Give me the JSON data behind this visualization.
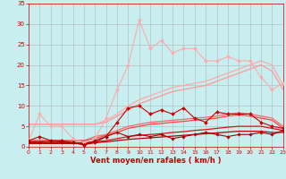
{
  "background_color": "#c8eef0",
  "grid_color": "#b0b0b0",
  "xlabel": "Vent moyen/en rafales ( km/h )",
  "xlabel_color": "#cc0000",
  "tick_color": "#cc0000",
  "xlim": [
    0,
    23
  ],
  "ylim": [
    0,
    35
  ],
  "xticks": [
    0,
    1,
    2,
    3,
    4,
    5,
    6,
    7,
    8,
    9,
    10,
    11,
    12,
    13,
    14,
    15,
    16,
    17,
    18,
    19,
    20,
    21,
    22,
    23
  ],
  "yticks": [
    0,
    5,
    10,
    15,
    20,
    25,
    30,
    35
  ],
  "lines": [
    {
      "x": [
        0,
        1,
        2,
        3,
        4,
        5,
        6,
        7,
        8,
        9,
        10,
        11,
        12,
        13,
        14,
        15,
        16,
        17,
        18,
        19,
        20,
        21,
        22,
        23
      ],
      "y": [
        1.5,
        8,
        5,
        5,
        2,
        1,
        2,
        7,
        14,
        20,
        31,
        24,
        26,
        23,
        24,
        24,
        21,
        21,
        22,
        21,
        21,
        17,
        14,
        15.5
      ],
      "color": "#ffaaaa",
      "linewidth": 0.8,
      "marker": "D",
      "markersize": 2.0,
      "zorder": 3
    },
    {
      "x": [
        0,
        1,
        2,
        3,
        4,
        5,
        6,
        7,
        8,
        9,
        10,
        11,
        12,
        13,
        14,
        15,
        16,
        17,
        18,
        19,
        20,
        21,
        22,
        23
      ],
      "y": [
        5.5,
        5.5,
        5.5,
        5.5,
        5.5,
        5.5,
        5.5,
        6.5,
        8,
        10,
        11.5,
        12.5,
        13.5,
        14.5,
        15,
        15.5,
        16,
        17,
        18,
        19,
        20,
        21,
        20,
        15
      ],
      "color": "#ffaaaa",
      "linewidth": 0.9,
      "marker": null,
      "markersize": 0,
      "zorder": 2
    },
    {
      "x": [
        0,
        1,
        2,
        3,
        4,
        5,
        6,
        7,
        8,
        9,
        10,
        11,
        12,
        13,
        14,
        15,
        16,
        17,
        18,
        19,
        20,
        21,
        22,
        23
      ],
      "y": [
        5.5,
        5.5,
        5.5,
        5.5,
        5.5,
        5.5,
        5.5,
        6,
        7.5,
        9,
        10.5,
        11.5,
        12.5,
        13.5,
        14,
        14.5,
        15,
        16,
        17,
        18,
        19,
        20,
        18.5,
        14
      ],
      "color": "#ff9999",
      "linewidth": 0.9,
      "marker": null,
      "markersize": 0,
      "zorder": 2
    },
    {
      "x": [
        0,
        1,
        2,
        3,
        4,
        5,
        6,
        7,
        8,
        9,
        10,
        11,
        12,
        13,
        14,
        15,
        16,
        17,
        18,
        19,
        20,
        21,
        22,
        23
      ],
      "y": [
        1.5,
        2.5,
        1.5,
        1.5,
        1.0,
        0.5,
        1.0,
        2.5,
        6,
        9.5,
        10,
        8,
        9,
        8,
        9.5,
        7,
        6,
        8.5,
        8,
        8,
        8,
        6,
        5,
        4.5
      ],
      "color": "#cc0000",
      "linewidth": 0.8,
      "marker": "D",
      "markersize": 2.0,
      "zorder": 4
    },
    {
      "x": [
        0,
        1,
        2,
        3,
        4,
        5,
        6,
        7,
        8,
        9,
        10,
        11,
        12,
        13,
        14,
        15,
        16,
        17,
        18,
        19,
        20,
        21,
        22,
        23
      ],
      "y": [
        1.5,
        1.5,
        1.5,
        1.5,
        1.5,
        1.5,
        2.5,
        3.0,
        4.0,
        5.0,
        5.5,
        6.0,
        6.2,
        6.5,
        6.7,
        7.0,
        7.2,
        7.5,
        8.0,
        8.3,
        8.0,
        7.5,
        7.0,
        5.0
      ],
      "color": "#ff6666",
      "linewidth": 0.9,
      "marker": null,
      "markersize": 0,
      "zorder": 2
    },
    {
      "x": [
        0,
        1,
        2,
        3,
        4,
        5,
        6,
        7,
        8,
        9,
        10,
        11,
        12,
        13,
        14,
        15,
        16,
        17,
        18,
        19,
        20,
        21,
        22,
        23
      ],
      "y": [
        1.5,
        1.5,
        1.5,
        1.5,
        1.5,
        1.5,
        2.0,
        2.8,
        3.5,
        4.5,
        5.0,
        5.5,
        5.7,
        6.0,
        6.2,
        6.5,
        6.7,
        7.0,
        7.5,
        7.8,
        7.5,
        7.0,
        6.5,
        4.5
      ],
      "color": "#ff4444",
      "linewidth": 0.9,
      "marker": null,
      "markersize": 0,
      "zorder": 2
    },
    {
      "x": [
        0,
        1,
        2,
        3,
        4,
        5,
        6,
        7,
        8,
        9,
        10,
        11,
        12,
        13,
        14,
        15,
        16,
        17,
        18,
        19,
        20,
        21,
        22,
        23
      ],
      "y": [
        1.2,
        1.2,
        1.3,
        1.2,
        1.0,
        0.5,
        1.5,
        2.5,
        3.5,
        2.5,
        3,
        2.5,
        3,
        2,
        2.5,
        3,
        3.5,
        3,
        2.5,
        3,
        3,
        3.5,
        3,
        4
      ],
      "color": "#aa0000",
      "linewidth": 0.8,
      "marker": "D",
      "markersize": 1.8,
      "zorder": 4
    },
    {
      "x": [
        0,
        1,
        2,
        3,
        4,
        5,
        6,
        7,
        8,
        9,
        10,
        11,
        12,
        13,
        14,
        15,
        16,
        17,
        18,
        19,
        20,
        21,
        22,
        23
      ],
      "y": [
        1.0,
        1.0,
        1.0,
        1.0,
        1.0,
        1.0,
        1.2,
        1.5,
        2.0,
        2.5,
        2.8,
        3.0,
        3.2,
        3.5,
        3.7,
        4.0,
        4.2,
        4.5,
        4.8,
        5.0,
        5.0,
        5.0,
        4.5,
        4.0
      ],
      "color": "#dd1111",
      "linewidth": 0.9,
      "marker": null,
      "markersize": 0,
      "zorder": 2
    },
    {
      "x": [
        0,
        1,
        2,
        3,
        4,
        5,
        6,
        7,
        8,
        9,
        10,
        11,
        12,
        13,
        14,
        15,
        16,
        17,
        18,
        19,
        20,
        21,
        22,
        23
      ],
      "y": [
        0.8,
        0.8,
        0.8,
        0.8,
        0.8,
        0.8,
        1.0,
        1.2,
        1.5,
        1.8,
        2.0,
        2.2,
        2.4,
        2.6,
        2.8,
        3.0,
        3.2,
        3.4,
        3.6,
        3.8,
        3.8,
        3.8,
        3.5,
        3.5
      ],
      "color": "#bb0000",
      "linewidth": 0.9,
      "marker": null,
      "markersize": 0,
      "zorder": 2
    }
  ]
}
